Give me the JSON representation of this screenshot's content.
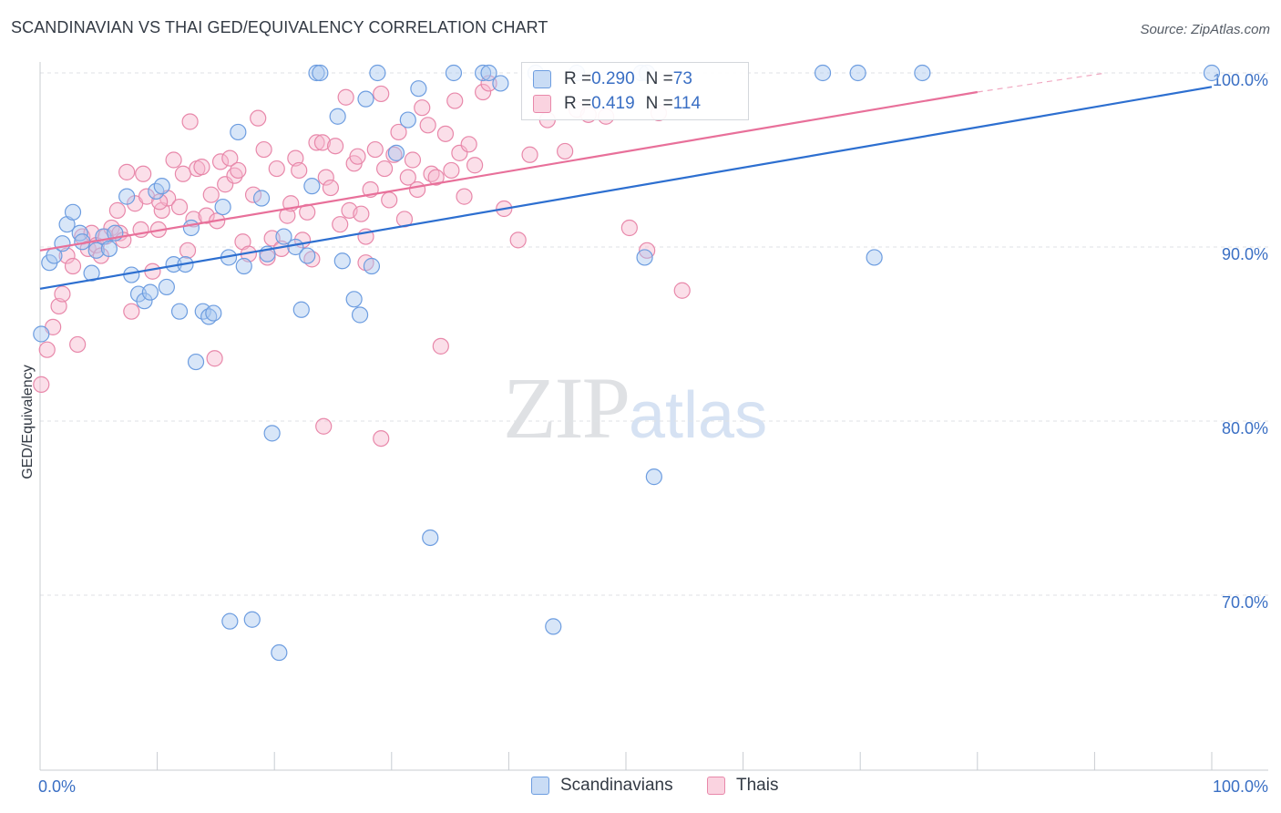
{
  "title": "SCANDINAVIAN VS THAI GED/EQUIVALENCY CORRELATION CHART",
  "source": "Source: ZipAtlas.com",
  "watermark": {
    "zip": "ZIP",
    "atlas": "atlas"
  },
  "legend": {
    "rows": [
      {
        "r_label": "R = ",
        "r_value": "0.290",
        "n_label": "N = ",
        "n_value": "73",
        "color": "#aac8f0"
      },
      {
        "r_label": "R = ",
        "r_value": "0.419",
        "n_label": "N = ",
        "n_value": "114",
        "color": "#f5b6cc"
      }
    ]
  },
  "colors": {
    "blue_fill": "#a9c7ef",
    "blue_stroke": "#6d9de0",
    "blue_line": "#2d6fd0",
    "pink_fill": "#f6b8ce",
    "pink_stroke": "#e888aa",
    "pink_line": "#e8709a",
    "grid": "#dfe2e6",
    "tick_label": "#3a6fc4"
  },
  "chart_data": {
    "type": "scatter",
    "title": "SCANDINAVIAN VS THAI GED/EQUIVALENCY CORRELATION CHART",
    "xlabel": "",
    "ylabel": "GED/Equivalency",
    "xlim": [
      0,
      100
    ],
    "ylim": [
      59,
      101
    ],
    "x_tick_labels": [
      "0.0%",
      "100.0%"
    ],
    "y_ticks": [
      70,
      80,
      90,
      100
    ],
    "y_tick_labels": [
      "70.0%",
      "80.0%",
      "90.0%",
      "100.0%"
    ],
    "grid": true,
    "legend_position": "top-center",
    "series": [
      {
        "name": "Scandinavians",
        "r": 0.29,
        "n": 73,
        "trend": {
          "x": [
            0,
            100
          ],
          "y": [
            87.6,
            99.2
          ]
        },
        "points": [
          [
            0.8,
            89.1
          ],
          [
            1.2,
            89.5
          ],
          [
            1.9,
            90.2
          ],
          [
            2.3,
            91.3
          ],
          [
            2.8,
            92.0
          ],
          [
            3.4,
            90.8
          ],
          [
            3.6,
            90.3
          ],
          [
            4.4,
            88.5
          ],
          [
            4.8,
            89.8
          ],
          [
            5.4,
            90.6
          ],
          [
            5.9,
            89.9
          ],
          [
            6.4,
            90.8
          ],
          [
            7.4,
            92.9
          ],
          [
            7.8,
            88.4
          ],
          [
            8.4,
            87.3
          ],
          [
            8.9,
            86.9
          ],
          [
            9.4,
            87.4
          ],
          [
            9.9,
            93.2
          ],
          [
            10.4,
            93.5
          ],
          [
            10.8,
            87.7
          ],
          [
            11.4,
            89.0
          ],
          [
            11.9,
            86.3
          ],
          [
            12.4,
            89.0
          ],
          [
            12.9,
            91.1
          ],
          [
            13.3,
            83.4
          ],
          [
            13.9,
            86.3
          ],
          [
            14.4,
            86.0
          ],
          [
            14.8,
            86.2
          ],
          [
            15.6,
            92.3
          ],
          [
            16.1,
            89.4
          ],
          [
            16.9,
            96.6
          ],
          [
            17.4,
            88.9
          ],
          [
            18.1,
            68.6
          ],
          [
            18.9,
            92.8
          ],
          [
            19.4,
            89.6
          ],
          [
            19.8,
            79.3
          ],
          [
            20.4,
            66.7
          ],
          [
            20.8,
            90.6
          ],
          [
            21.8,
            90.0
          ],
          [
            22.3,
            86.4
          ],
          [
            22.8,
            89.5
          ],
          [
            23.2,
            93.5
          ],
          [
            23.6,
            100.0
          ],
          [
            23.9,
            100.0
          ],
          [
            25.4,
            97.5
          ],
          [
            25.8,
            89.2
          ],
          [
            26.8,
            87.0
          ],
          [
            27.3,
            86.1
          ],
          [
            27.8,
            98.5
          ],
          [
            28.3,
            88.9
          ],
          [
            28.8,
            100.0
          ],
          [
            30.4,
            95.4
          ],
          [
            31.4,
            97.3
          ],
          [
            32.3,
            99.1
          ],
          [
            33.3,
            73.3
          ],
          [
            35.3,
            100.0
          ],
          [
            37.8,
            100.0
          ],
          [
            38.3,
            100.0
          ],
          [
            39.3,
            99.4
          ],
          [
            42.3,
            100.0
          ],
          [
            43.8,
            68.2
          ],
          [
            45.8,
            100.0
          ],
          [
            51.3,
            100.0
          ],
          [
            51.8,
            100.0
          ],
          [
            51.6,
            89.4
          ],
          [
            52.4,
            76.8
          ],
          [
            66.8,
            100.0
          ],
          [
            69.8,
            100.0
          ],
          [
            71.2,
            89.4
          ],
          [
            75.3,
            100.0
          ],
          [
            100.0,
            100.0
          ],
          [
            0.1,
            85.0
          ],
          [
            16.2,
            68.5
          ]
        ]
      },
      {
        "name": "Thais",
        "r": 0.419,
        "n": 114,
        "trend": {
          "x": [
            0,
            80
          ],
          "y": [
            89.8,
            98.9
          ]
        },
        "trend_dashed": {
          "x": [
            80,
            91
          ],
          "y": [
            98.9,
            100.0
          ]
        },
        "points": [
          [
            0.1,
            82.1
          ],
          [
            0.6,
            84.1
          ],
          [
            1.1,
            85.4
          ],
          [
            1.6,
            86.6
          ],
          [
            1.9,
            87.3
          ],
          [
            2.3,
            89.5
          ],
          [
            2.8,
            88.9
          ],
          [
            3.2,
            84.4
          ],
          [
            3.6,
            90.6
          ],
          [
            4.1,
            89.9
          ],
          [
            4.4,
            90.8
          ],
          [
            4.8,
            90.1
          ],
          [
            5.2,
            89.5
          ],
          [
            5.6,
            90.6
          ],
          [
            6.1,
            91.1
          ],
          [
            6.6,
            92.1
          ],
          [
            6.8,
            90.8
          ],
          [
            7.1,
            90.4
          ],
          [
            7.4,
            94.3
          ],
          [
            7.8,
            86.3
          ],
          [
            8.1,
            92.5
          ],
          [
            8.6,
            91.0
          ],
          [
            9.1,
            92.9
          ],
          [
            9.6,
            88.6
          ],
          [
            10.1,
            91.0
          ],
          [
            10.4,
            92.1
          ],
          [
            10.9,
            92.8
          ],
          [
            11.4,
            95.0
          ],
          [
            11.9,
            92.3
          ],
          [
            12.2,
            94.2
          ],
          [
            12.6,
            89.8
          ],
          [
            13.1,
            91.6
          ],
          [
            13.4,
            94.5
          ],
          [
            13.8,
            94.6
          ],
          [
            14.2,
            91.8
          ],
          [
            14.6,
            93.0
          ],
          [
            15.1,
            91.5
          ],
          [
            15.4,
            94.9
          ],
          [
            15.8,
            93.6
          ],
          [
            16.2,
            95.1
          ],
          [
            16.6,
            94.1
          ],
          [
            16.9,
            94.4
          ],
          [
            17.3,
            90.3
          ],
          [
            17.8,
            89.6
          ],
          [
            18.2,
            93.0
          ],
          [
            18.6,
            97.4
          ],
          [
            19.1,
            95.6
          ],
          [
            19.4,
            89.4
          ],
          [
            19.8,
            90.5
          ],
          [
            20.2,
            94.5
          ],
          [
            20.6,
            89.9
          ],
          [
            21.1,
            91.8
          ],
          [
            21.4,
            92.5
          ],
          [
            21.8,
            95.1
          ],
          [
            22.1,
            94.4
          ],
          [
            22.4,
            90.4
          ],
          [
            22.8,
            92.0
          ],
          [
            23.2,
            89.3
          ],
          [
            23.6,
            96.0
          ],
          [
            24.1,
            96.0
          ],
          [
            24.4,
            94.0
          ],
          [
            24.8,
            93.4
          ],
          [
            25.2,
            95.8
          ],
          [
            25.6,
            91.3
          ],
          [
            26.1,
            98.6
          ],
          [
            26.4,
            92.1
          ],
          [
            26.8,
            94.8
          ],
          [
            27.1,
            95.2
          ],
          [
            27.4,
            91.9
          ],
          [
            27.8,
            89.1
          ],
          [
            28.2,
            93.3
          ],
          [
            28.6,
            95.6
          ],
          [
            29.1,
            98.8
          ],
          [
            29.4,
            94.5
          ],
          [
            29.8,
            92.7
          ],
          [
            30.2,
            95.3
          ],
          [
            30.6,
            96.6
          ],
          [
            31.1,
            91.6
          ],
          [
            31.4,
            94.0
          ],
          [
            31.8,
            95.0
          ],
          [
            32.2,
            93.3
          ],
          [
            32.6,
            98.0
          ],
          [
            33.1,
            97.0
          ],
          [
            33.4,
            94.2
          ],
          [
            33.8,
            94.0
          ],
          [
            34.2,
            84.3
          ],
          [
            34.6,
            96.5
          ],
          [
            35.1,
            94.4
          ],
          [
            35.4,
            98.4
          ],
          [
            35.8,
            95.4
          ],
          [
            36.2,
            92.9
          ],
          [
            36.6,
            95.9
          ],
          [
            37.1,
            94.7
          ],
          [
            37.8,
            98.9
          ],
          [
            38.3,
            99.4
          ],
          [
            39.6,
            92.2
          ],
          [
            40.8,
            90.4
          ],
          [
            41.8,
            95.3
          ],
          [
            43.3,
            97.3
          ],
          [
            44.8,
            95.5
          ],
          [
            45.8,
            97.9
          ],
          [
            46.8,
            97.6
          ],
          [
            48.3,
            97.5
          ],
          [
            50.3,
            91.1
          ],
          [
            51.8,
            89.8
          ],
          [
            52.8,
            97.7
          ],
          [
            54.8,
            87.5
          ],
          [
            27.8,
            90.6
          ],
          [
            24.2,
            79.7
          ],
          [
            29.1,
            79.0
          ],
          [
            14.9,
            83.6
          ],
          [
            10.2,
            92.6
          ],
          [
            8.8,
            94.2
          ],
          [
            12.8,
            97.2
          ]
        ]
      }
    ]
  },
  "bottom_legend": {
    "items": [
      {
        "label": "Scandinavians"
      },
      {
        "label": "Thais"
      }
    ]
  }
}
